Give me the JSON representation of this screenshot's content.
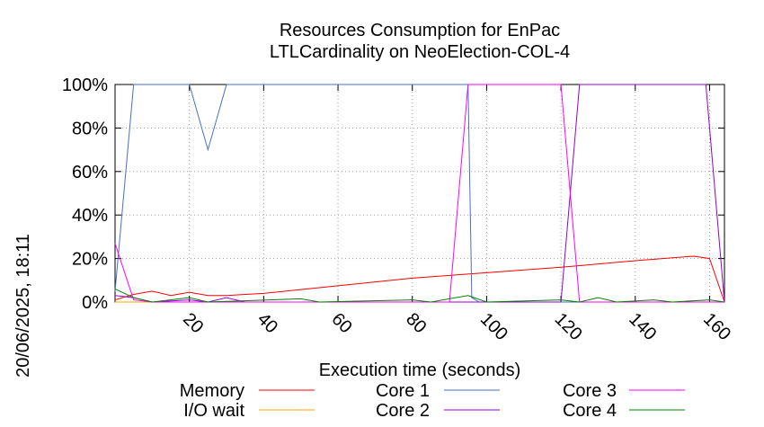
{
  "chart_data": {
    "type": "line",
    "title": [
      "Resources Consumption for EnPac",
      "LTLCardinality on NeoElection-COL-4"
    ],
    "xlabel": "Execution time (seconds)",
    "ylabel": "",
    "side_label": "20/06/2025, 18:11",
    "xlim": [
      0,
      164
    ],
    "ylim": [
      0,
      100
    ],
    "xticks": [
      20,
      40,
      60,
      80,
      100,
      120,
      140,
      160
    ],
    "yticks": [
      0,
      20,
      40,
      60,
      80,
      100
    ],
    "ytick_labels": [
      "0%",
      "20%",
      "40%",
      "60%",
      "80%",
      "100%"
    ],
    "grid": true,
    "legend_placement": "bottom",
    "series": [
      {
        "name": "Memory",
        "color": "#ff0000",
        "points": [
          [
            0,
            1
          ],
          [
            5,
            3.5
          ],
          [
            10,
            5
          ],
          [
            15,
            3
          ],
          [
            20,
            4.5
          ],
          [
            25,
            3
          ],
          [
            30,
            3
          ],
          [
            35,
            3.5
          ],
          [
            40,
            4
          ],
          [
            60,
            7.5
          ],
          [
            80,
            11
          ],
          [
            100,
            13.5
          ],
          [
            120,
            16
          ],
          [
            140,
            19
          ],
          [
            155,
            21
          ],
          [
            156,
            21
          ],
          [
            160,
            20
          ],
          [
            164,
            0
          ]
        ]
      },
      {
        "name": "I/O wait",
        "color": "#ffa500",
        "points": [
          [
            0,
            0
          ],
          [
            164,
            0
          ]
        ]
      },
      {
        "name": "Core 1",
        "color": "#4472c4",
        "points": [
          [
            0,
            5
          ],
          [
            5,
            100
          ],
          [
            20,
            100
          ],
          [
            25,
            70
          ],
          [
            30,
            100
          ],
          [
            95,
            100
          ],
          [
            96,
            2
          ],
          [
            98,
            0
          ],
          [
            164,
            0
          ]
        ]
      },
      {
        "name": "Core 2",
        "color": "#9400d3",
        "points": [
          [
            0,
            3
          ],
          [
            5,
            2
          ],
          [
            10,
            0
          ],
          [
            20,
            1
          ],
          [
            25,
            0
          ],
          [
            30,
            2
          ],
          [
            35,
            0
          ],
          [
            120,
            0
          ],
          [
            125,
            100
          ],
          [
            159,
            100
          ],
          [
            164,
            0
          ]
        ]
      },
      {
        "name": "Core 3",
        "color": "#ff00ff",
        "points": [
          [
            0,
            27
          ],
          [
            5,
            1
          ],
          [
            10,
            0
          ],
          [
            90,
            0
          ],
          [
            95,
            100
          ],
          [
            120,
            100
          ],
          [
            125,
            0
          ],
          [
            164,
            0
          ]
        ]
      },
      {
        "name": "Core 4",
        "color": "#008000",
        "points": [
          [
            0,
            6
          ],
          [
            5,
            2
          ],
          [
            10,
            0
          ],
          [
            20,
            2
          ],
          [
            25,
            0
          ],
          [
            50,
            1.5
          ],
          [
            55,
            0
          ],
          [
            80,
            1
          ],
          [
            85,
            0
          ],
          [
            95,
            3
          ],
          [
            100,
            0
          ],
          [
            120,
            1
          ],
          [
            125,
            0
          ],
          [
            130,
            2
          ],
          [
            135,
            0
          ],
          [
            145,
            1
          ],
          [
            150,
            0
          ],
          [
            160,
            1
          ],
          [
            164,
            0
          ]
        ]
      }
    ]
  }
}
